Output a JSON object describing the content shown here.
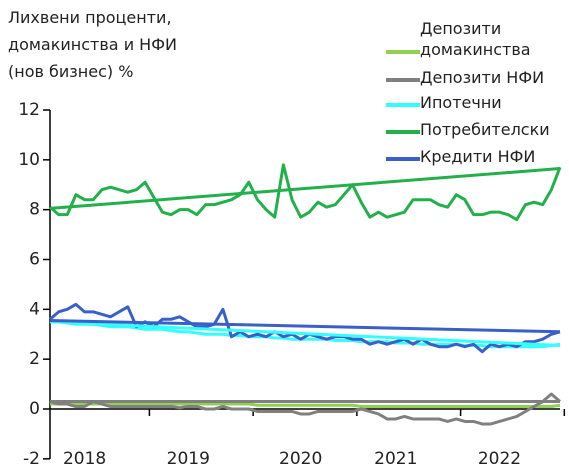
{
  "chart_data": {
    "type": "line",
    "title": [
      "Лихвени проценти,",
      "домакинства и НФИ",
      "(нов бизнес) %"
    ],
    "categories": [
      null,
      null,
      null,
      null,
      "2018",
      null,
      null,
      null,
      null,
      null,
      null,
      null,
      null,
      null,
      null,
      null,
      "2019",
      null,
      null,
      null,
      null,
      null,
      null,
      null,
      null,
      null,
      null,
      null,
      null,
      "2020",
      null,
      null,
      null,
      null,
      null,
      null,
      null,
      null,
      null,
      null,
      "2021",
      null,
      null,
      null,
      null,
      null,
      null,
      null,
      null,
      null,
      null,
      null,
      "2022",
      null,
      null,
      null,
      null,
      null,
      null,
      null
    ],
    "series": [
      {
        "name": "Депозити домакинства",
        "color": "#92d050",
        "values": [
          0.2,
          0.2,
          0.2,
          0.2,
          0.2,
          0.2,
          0.2,
          0.2,
          0.2,
          0.2,
          0.2,
          0.2,
          0.2,
          0.2,
          0.2,
          0.2,
          0.2,
          0.2,
          0.2,
          0.2,
          0.2,
          0.2,
          0.2,
          0.2,
          0.15,
          0.15,
          0.15,
          0.15,
          0.15,
          0.15,
          0.15,
          0.15,
          0.15,
          0.15,
          0.15,
          0.15,
          0.1,
          0.1,
          0.1,
          0.1,
          0.1,
          0.1,
          0.1,
          0.1,
          0.1,
          0.1,
          0.1,
          0.1,
          0.1,
          0.1,
          0.1,
          0.1,
          0.1,
          0.1,
          0.1,
          0.1,
          0.1,
          0.1,
          0.1,
          0.15
        ]
      },
      {
        "name": "Депозити НФИ",
        "color": "#808080",
        "values": [
          0.3,
          0.2,
          0.2,
          0.1,
          0.1,
          0.3,
          0.2,
          0.1,
          0.1,
          0.1,
          0.1,
          0.1,
          0.1,
          0.1,
          0.1,
          0.05,
          0.1,
          0.1,
          0.0,
          0.0,
          0.1,
          0.0,
          0.0,
          0.0,
          -0.1,
          -0.1,
          -0.1,
          -0.1,
          -0.1,
          -0.2,
          -0.2,
          -0.1,
          -0.1,
          -0.1,
          -0.1,
          -0.1,
          0.0,
          -0.1,
          -0.2,
          -0.4,
          -0.4,
          -0.3,
          -0.4,
          -0.4,
          -0.4,
          -0.4,
          -0.5,
          -0.4,
          -0.5,
          -0.5,
          -0.6,
          -0.6,
          -0.5,
          -0.4,
          -0.3,
          -0.1,
          0.1,
          0.3,
          0.6,
          0.3
        ]
      },
      {
        "name": "Ипотечни",
        "color": "#33ffff",
        "values": [
          3.5,
          3.5,
          3.45,
          3.4,
          3.4,
          3.4,
          3.35,
          3.3,
          3.3,
          3.3,
          3.25,
          3.2,
          3.2,
          3.2,
          3.15,
          3.1,
          3.1,
          3.05,
          3.0,
          3.0,
          3.0,
          2.95,
          2.95,
          2.9,
          2.9,
          2.9,
          2.85,
          2.85,
          2.8,
          2.8,
          2.8,
          2.8,
          2.8,
          2.75,
          2.75,
          2.75,
          2.7,
          2.7,
          2.7,
          2.7,
          2.65,
          2.65,
          2.65,
          2.6,
          2.6,
          2.6,
          2.6,
          2.6,
          2.55,
          2.55,
          2.55,
          2.5,
          2.5,
          2.5,
          2.5,
          2.5,
          2.5,
          2.5,
          2.55,
          2.6
        ]
      },
      {
        "name": "Потребителски",
        "color": "#22b04b",
        "values": [
          8.1,
          7.8,
          7.8,
          8.6,
          8.4,
          8.4,
          8.8,
          8.9,
          8.8,
          8.7,
          8.8,
          9.1,
          8.5,
          7.9,
          7.8,
          8.0,
          8.0,
          7.8,
          8.2,
          8.2,
          8.3,
          8.4,
          8.6,
          9.1,
          8.4,
          8.0,
          7.7,
          9.8,
          8.4,
          7.7,
          7.9,
          8.3,
          8.1,
          8.2,
          8.6,
          9.0,
          8.3,
          7.7,
          7.9,
          7.7,
          7.8,
          7.9,
          8.4,
          8.4,
          8.4,
          8.2,
          8.1,
          8.6,
          8.4,
          7.8,
          7.8,
          7.9,
          7.9,
          7.8,
          7.6,
          8.2,
          8.3,
          8.2,
          8.8,
          9.7
        ]
      },
      {
        "name": "Кредити НФИ",
        "color": "#3a5fc8",
        "values": [
          3.6,
          3.9,
          4.0,
          4.2,
          3.9,
          3.9,
          3.8,
          3.7,
          3.9,
          4.1,
          3.3,
          3.5,
          3.3,
          3.6,
          3.6,
          3.7,
          3.5,
          3.3,
          3.3,
          3.4,
          4.0,
          2.9,
          3.1,
          2.9,
          3.0,
          2.9,
          3.1,
          2.9,
          3.0,
          2.8,
          3.0,
          2.9,
          2.8,
          2.9,
          2.9,
          2.8,
          2.8,
          2.6,
          2.7,
          2.6,
          2.7,
          2.8,
          2.6,
          2.8,
          2.6,
          2.5,
          2.5,
          2.6,
          2.5,
          2.6,
          2.3,
          2.6,
          2.5,
          2.6,
          2.5,
          2.7,
          2.7,
          2.8,
          3.0,
          3.1
        ]
      }
    ],
    "trendlines": [
      {
        "color": "#808080",
        "values": [
          0.3,
          0.3
        ]
      },
      {
        "color": "#33ffff",
        "values": [
          3.5,
          2.55
        ]
      },
      {
        "color": "#22b04b",
        "values": [
          8.05,
          9.65
        ]
      },
      {
        "color": "#3a5fc8",
        "values": [
          3.55,
          3.1
        ]
      }
    ],
    "ylim": [
      -2,
      12
    ],
    "yticks": [
      -2,
      0,
      2,
      4,
      6,
      8,
      10,
      12
    ]
  }
}
